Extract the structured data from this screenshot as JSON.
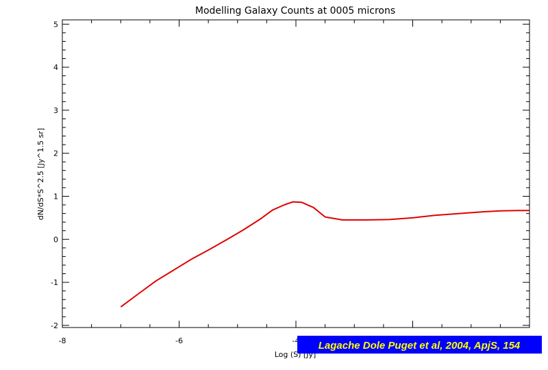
{
  "chart_data": {
    "type": "line",
    "title": "Modelling Galaxy Counts at 0005 microns",
    "xlabel": "Log (S) [Jy]",
    "ylabel": "dN/dS*S^2.5 [Jy^1.5 sr]",
    "xlim": [
      -8,
      0
    ],
    "ylim": [
      -2.05,
      5.1
    ],
    "x_ticks": [
      -8,
      -6,
      -4,
      -2,
      0
    ],
    "x_tick_labels": [
      "-8",
      "-6",
      "-4",
      "",
      ""
    ],
    "y_ticks": [
      -2,
      -1,
      0,
      1,
      2,
      3,
      4,
      5
    ],
    "y_tick_labels": [
      "-2",
      "-1",
      "0",
      "1",
      "2",
      "3",
      "4",
      "5"
    ],
    "grid": false,
    "series": [
      {
        "color": "#e00000",
        "x": [
          -7.0,
          -6.7,
          -6.4,
          -6.1,
          -5.8,
          -5.5,
          -5.2,
          -4.9,
          -4.6,
          -4.4,
          -4.2,
          -4.05,
          -3.9,
          -3.7,
          -3.5,
          -3.2,
          -2.8,
          -2.4,
          -2.0,
          -1.6,
          -1.2,
          -0.8,
          -0.5,
          -0.2,
          0.0
        ],
        "y": [
          -1.57,
          -1.27,
          -0.97,
          -0.72,
          -0.47,
          -0.25,
          -0.02,
          0.22,
          0.48,
          0.68,
          0.8,
          0.87,
          0.86,
          0.74,
          0.52,
          0.45,
          0.45,
          0.46,
          0.5,
          0.56,
          0.6,
          0.64,
          0.66,
          0.67,
          0.67
        ]
      }
    ]
  },
  "annotation": {
    "text": "Lagache Dole Puget et al, 2004, ApjS, 154",
    "text_color": "#ffff00",
    "background": "#0000ff"
  }
}
